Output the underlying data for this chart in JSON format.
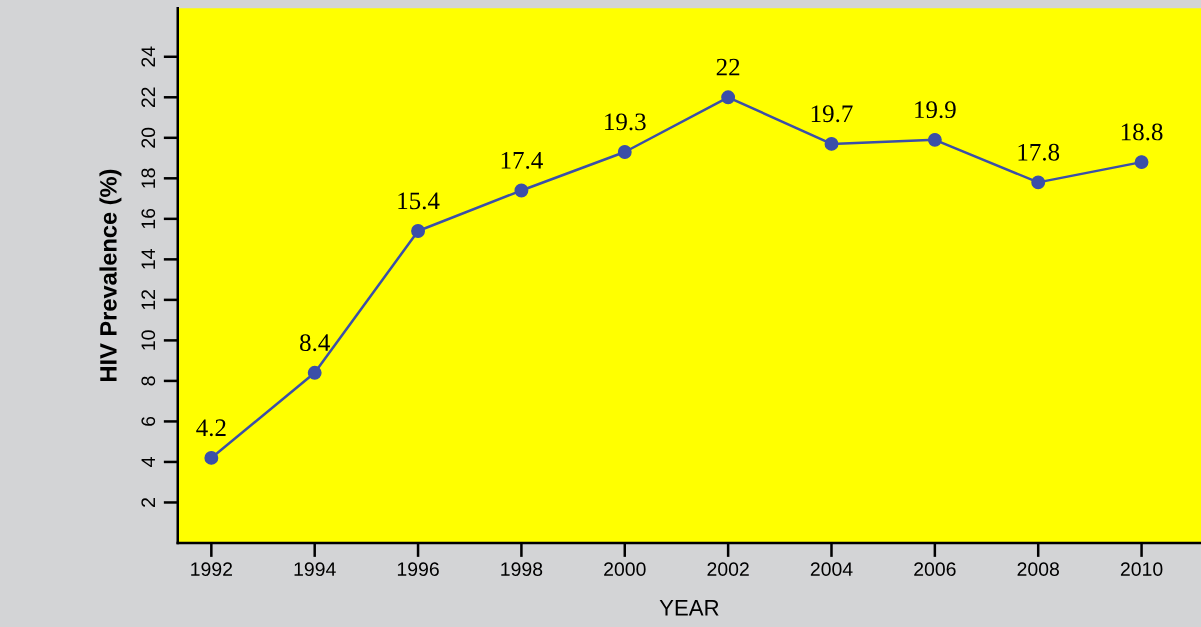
{
  "chart_data": {
    "type": "line",
    "xlabel": "YEAR",
    "ylabel": "HIV Prevalence (%)",
    "x": [
      1992,
      1994,
      1996,
      1998,
      2000,
      2002,
      2004,
      2006,
      2008,
      2010
    ],
    "series": [
      {
        "color": "#3b4fa8",
        "values": [
          4.2,
          8.4,
          15.4,
          17.4,
          19.3,
          22,
          19.7,
          19.9,
          17.8,
          18.8
        ]
      }
    ],
    "xlim": [
      1991.35,
      2011.15
    ],
    "xticks": [
      1992,
      1994,
      1996,
      1998,
      2000,
      2002,
      2004,
      2006,
      2008,
      2010
    ],
    "ylim": [
      0,
      26.4
    ],
    "yticks": [
      2,
      4,
      6,
      8,
      10,
      12,
      14,
      16,
      18,
      20,
      22,
      24
    ],
    "marker": "circle",
    "line_style": "solid",
    "data_labels": true,
    "grid": false,
    "legend": false
  }
}
